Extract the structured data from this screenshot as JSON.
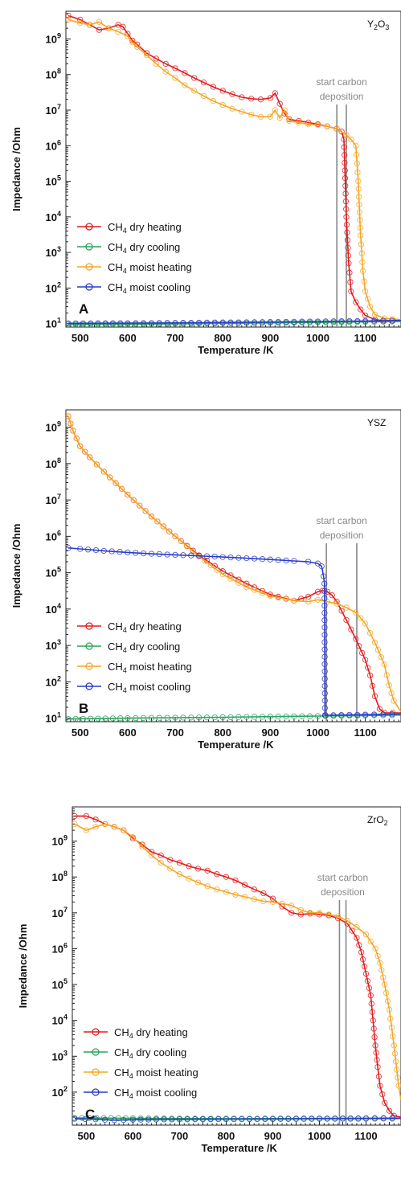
{
  "colors": {
    "dry_heating": "#e31a1c",
    "dry_cooling": "#2ca25f",
    "moist_heating": "#f5a623",
    "moist_cooling": "#2b3bc9",
    "axis": "#222222",
    "marker_line": "#888888"
  },
  "chart_data": [
    {
      "type": "line",
      "panel_letter": "A",
      "material_base": "Y",
      "material_sub1": "2",
      "material_mid": "O",
      "material_sub2": "3",
      "xlabel": "Temperature /K",
      "ylabel": "Impedance /Ohm",
      "y_scale": "log",
      "xlim": [
        470,
        1175
      ],
      "ylim": [
        8,
        6000000000
      ],
      "xticks": [
        500,
        600,
        700,
        800,
        900,
        1000,
        1100
      ],
      "yticks": [
        10,
        100,
        1000,
        10000,
        100000,
        1000000,
        10000000,
        100000000,
        1000000000
      ],
      "annotation": {
        "line1": "start carbon",
        "line2": "deposition",
        "vlines_x": [
          1040,
          1060
        ]
      },
      "legend_position": "lower-left",
      "series": [
        {
          "key": "dry_heating",
          "label_pre": "CH",
          "label_sub": "4",
          "label_post": " dry heating",
          "x": [
            475,
            500,
            520,
            540,
            560,
            580,
            590,
            600,
            610,
            620,
            640,
            660,
            680,
            700,
            720,
            740,
            760,
            780,
            800,
            820,
            840,
            860,
            880,
            900,
            910,
            920,
            930,
            940,
            960,
            980,
            1000,
            1020,
            1040,
            1050,
            1055,
            1060,
            1065,
            1070,
            1080,
            1090,
            1100,
            1120,
            1140,
            1175
          ],
          "y": [
            4500000000.0,
            3500000000.0,
            2500000000.0,
            1800000000.0,
            2000000000.0,
            2500000000.0,
            2200000000.0,
            1400000000.0,
            900000000.0,
            700000000.0,
            400000000.0,
            280000000.0,
            200000000.0,
            150000000.0,
            110000000.0,
            80000000.0,
            60000000.0,
            45000000.0,
            35000000.0,
            28000000.0,
            23000000.0,
            21000000.0,
            20000000.0,
            22000000.0,
            30000000.0,
            15000000.0,
            8000000.0,
            5500000.0,
            5000000.0,
            4500000.0,
            4000000.0,
            3500000.0,
            3000000.0,
            2500000.0,
            1500000.0,
            10000.0,
            500,
            80,
            40,
            25,
            17,
            13,
            12,
            12
          ]
        },
        {
          "key": "dry_cooling",
          "label_pre": "CH",
          "label_sub": "4",
          "label_post": " dry cooling",
          "x": [
            475,
            600,
            700,
            800,
            900,
            1000,
            1100,
            1175
          ],
          "y": [
            9.5,
            9.7,
            9.9,
            10.2,
            10.5,
            10.8,
            11.2,
            11.5
          ]
        },
        {
          "key": "moist_heating",
          "label_pre": "CH",
          "label_sub": "4",
          "label_post": " moist heating",
          "x": [
            475,
            500,
            520,
            540,
            560,
            580,
            600,
            610,
            620,
            640,
            660,
            680,
            700,
            720,
            740,
            760,
            780,
            800,
            820,
            840,
            860,
            880,
            900,
            910,
            920,
            930,
            940,
            960,
            980,
            1000,
            1020,
            1040,
            1060,
            1070,
            1080,
            1085,
            1090,
            1095,
            1100,
            1110,
            1120,
            1140,
            1175
          ],
          "y": [
            3500000000.0,
            2800000000.0,
            2500000000.0,
            3000000000.0,
            2000000000.0,
            1600000000.0,
            1200000000.0,
            800000000.0,
            600000000.0,
            350000000.0,
            200000000.0,
            120000000.0,
            80000000.0,
            50000000.0,
            35000000.0,
            25000000.0,
            18000000.0,
            14000000.0,
            11000000.0,
            9000000.0,
            7500000.0,
            6500000.0,
            6500000.0,
            10000000.0,
            6000000.0,
            10000000.0,
            5000000.0,
            4500000.0,
            4000000.0,
            3800000.0,
            3500000.0,
            3000000.0,
            2000000.0,
            1500000.0,
            1000000.0,
            100000.0,
            3000.0,
            300,
            80,
            30,
            18,
            14,
            13
          ]
        },
        {
          "key": "moist_cooling",
          "label_pre": "CH",
          "label_sub": "4",
          "label_post": " moist cooling",
          "x": [
            475,
            600,
            700,
            800,
            900,
            1000,
            1100,
            1175
          ],
          "y": [
            10.2,
            10.3,
            10.5,
            10.8,
            11.1,
            11.5,
            11.9,
            12.3
          ]
        }
      ]
    },
    {
      "type": "line",
      "panel_letter": "B",
      "material_base": "YSZ",
      "material_sub1": "",
      "material_mid": "",
      "material_sub2": "",
      "xlabel": "Temperature /K",
      "ylabel": "Impedance /Ohm",
      "y_scale": "log",
      "xlim": [
        470,
        1175
      ],
      "ylim": [
        8,
        3000000000
      ],
      "xticks": [
        500,
        600,
        700,
        800,
        900,
        1000,
        1100
      ],
      "yticks": [
        10,
        100,
        1000,
        10000,
        100000,
        1000000,
        10000000,
        100000000,
        1000000000
      ],
      "annotation": {
        "line1": "start carbon",
        "line2": "deposition",
        "vlines_x": [
          1018,
          1082
        ]
      },
      "legend_position": "lower-left",
      "series": [
        {
          "key": "dry_heating",
          "label_pre": "CH",
          "label_sub": "4",
          "label_post": " dry heating",
          "x": [
            475,
            485,
            500,
            520,
            550,
            600,
            650,
            700,
            750,
            800,
            850,
            900,
            950,
            980,
            1000,
            1010,
            1020,
            1030,
            1040,
            1060,
            1080,
            1100,
            1110,
            1120,
            1130,
            1140,
            1175
          ],
          "y": [
            2000000000.0,
            800000000.0,
            300000000.0,
            150000000.0,
            60000000.0,
            14000000.0,
            3500000.0,
            1000000.0,
            300000.0,
            110000.0,
            50000.0,
            25000.0,
            17000.0,
            22000.0,
            30000.0,
            32000.0,
            30000.0,
            24000.0,
            16000.0,
            5000.0,
            1500.0,
            400,
            150,
            40,
            18,
            14,
            14
          ]
        },
        {
          "key": "dry_cooling",
          "label_pre": "CH",
          "label_sub": "4",
          "label_post": " dry cooling",
          "x": [
            475,
            600,
            700,
            800,
            900,
            1000,
            1100,
            1175
          ],
          "y": [
            9.5,
            10,
            10.3,
            10.6,
            11,
            11.4,
            11.8,
            12.2
          ]
        },
        {
          "key": "moist_heating",
          "label_pre": "CH",
          "label_sub": "4",
          "label_post": " moist heating",
          "x": [
            475,
            485,
            500,
            520,
            550,
            600,
            650,
            700,
            750,
            800,
            850,
            900,
            950,
            980,
            1000,
            1020,
            1040,
            1060,
            1080,
            1100,
            1120,
            1140,
            1150,
            1160,
            1175
          ],
          "y": [
            2000000000.0,
            800000000.0,
            300000000.0,
            150000000.0,
            60000000.0,
            14000000.0,
            3500000.0,
            1000000.0,
            280000.0,
            90000.0,
            40000.0,
            23000.0,
            17000.0,
            16000.0,
            18000.0,
            16000.0,
            14000.0,
            11000.0,
            8000.0,
            4000.0,
            1200.0,
            300,
            80,
            30,
            15
          ]
        },
        {
          "key": "moist_cooling",
          "label_pre": "CH",
          "label_sub": "4",
          "label_post": " moist cooling",
          "x": [
            475,
            500,
            550,
            600,
            650,
            700,
            750,
            800,
            850,
            900,
            950,
            980,
            1000,
            1008,
            1012,
            1014,
            1015,
            1016,
            1100,
            1175
          ],
          "y": [
            480000.0,
            450000.0,
            400000.0,
            360000.0,
            330000.0,
            310000.0,
            290000.0,
            270000.0,
            250000.0,
            230000.0,
            210000.0,
            200000.0,
            180000.0,
            150000.0,
            80000.0,
            50000.0,
            12,
            12,
            12.5,
            13
          ]
        }
      ]
    },
    {
      "type": "line",
      "panel_letter": "C",
      "material_base": "ZrO",
      "material_sub1": "2",
      "material_mid": "",
      "material_sub2": "",
      "xlabel": "Temperature /K",
      "ylabel": "Impedance /Ohm",
      "y_scale": "log",
      "xlim": [
        470,
        1175
      ],
      "ylim": [
        12,
        9000000000
      ],
      "xticks": [
        500,
        600,
        700,
        800,
        900,
        1000,
        1100
      ],
      "yticks": [
        100,
        1000,
        10000,
        100000,
        1000000,
        10000000,
        100000000,
        1000000000
      ],
      "annotation": {
        "line1": "start carbon",
        "line2": "deposition",
        "vlines_x": [
          1043,
          1057
        ]
      },
      "legend_position": "lower-left",
      "series": [
        {
          "key": "dry_heating",
          "label_pre": "CH",
          "label_sub": "4",
          "label_post": " dry heating",
          "x": [
            475,
            500,
            520,
            540,
            560,
            580,
            600,
            620,
            640,
            660,
            680,
            700,
            720,
            740,
            760,
            780,
            800,
            820,
            840,
            860,
            880,
            900,
            920,
            940,
            960,
            980,
            1000,
            1020,
            1040,
            1060,
            1080,
            1090,
            1100,
            1110,
            1115,
            1120,
            1125,
            1130,
            1140,
            1150,
            1160,
            1175
          ],
          "y": [
            5000000000.0,
            5000000000.0,
            4000000000.0,
            3000000000.0,
            2500000000.0,
            2000000000.0,
            1200000000.0,
            800000000.0,
            500000000.0,
            400000000.0,
            300000000.0,
            250000000.0,
            200000000.0,
            170000000.0,
            150000000.0,
            120000000.0,
            100000000.0,
            80000000.0,
            60000000.0,
            45000000.0,
            35000000.0,
            25000000.0,
            15000000.0,
            10000000.0,
            9000000.0,
            9500000.0,
            9000000.0,
            8500000.0,
            7000000.0,
            5000000.0,
            2000000.0,
            800000.0,
            200000.0,
            50000.0,
            10000.0,
            2000.0,
            500,
            150,
            50,
            30,
            22,
            20
          ]
        },
        {
          "key": "dry_cooling",
          "label_pre": "CH",
          "label_sub": "4",
          "label_post": " dry cooling",
          "x": [
            475,
            600,
            700,
            800,
            900,
            1000,
            1100,
            1175
          ],
          "y": [
            19,
            18.6,
            18.3,
            18.2,
            18.3,
            18.5,
            18.8,
            19
          ]
        },
        {
          "key": "moist_heating",
          "label_pre": "CH",
          "label_sub": "4",
          "label_post": " moist heating",
          "x": [
            475,
            500,
            520,
            540,
            560,
            580,
            600,
            620,
            640,
            660,
            680,
            700,
            720,
            740,
            760,
            780,
            800,
            820,
            840,
            860,
            880,
            900,
            920,
            940,
            960,
            980,
            1000,
            1020,
            1040,
            1060,
            1080,
            1100,
            1120,
            1130,
            1140,
            1150,
            1160,
            1170,
            1175
          ],
          "y": [
            3000000000.0,
            2000000000.0,
            2500000000.0,
            3000000000.0,
            2500000000.0,
            2000000000.0,
            1300000000.0,
            700000000.0,
            400000000.0,
            250000000.0,
            170000000.0,
            120000000.0,
            90000000.0,
            70000000.0,
            55000000.0,
            45000000.0,
            38000000.0,
            32000000.0,
            28000000.0,
            24000000.0,
            21000000.0,
            20000000.0,
            18000000.0,
            16000000.0,
            12000000.0,
            10000000.0,
            10000000.0,
            9000000.0,
            8000000.0,
            6000000.0,
            4000000.0,
            2500000.0,
            1000000.0,
            400000.0,
            100000.0,
            20000.0,
            2000.0,
            150,
            60
          ]
        },
        {
          "key": "moist_cooling",
          "label_pre": "CH",
          "label_sub": "4",
          "label_post": " moist cooling",
          "x": [
            475,
            520,
            560,
            600,
            650,
            700,
            800,
            900,
            1000,
            1100,
            1175
          ],
          "y": [
            18,
            17.5,
            16.5,
            17,
            17.2,
            17.4,
            17.6,
            17.8,
            18,
            18.2,
            18.4
          ]
        }
      ]
    }
  ]
}
